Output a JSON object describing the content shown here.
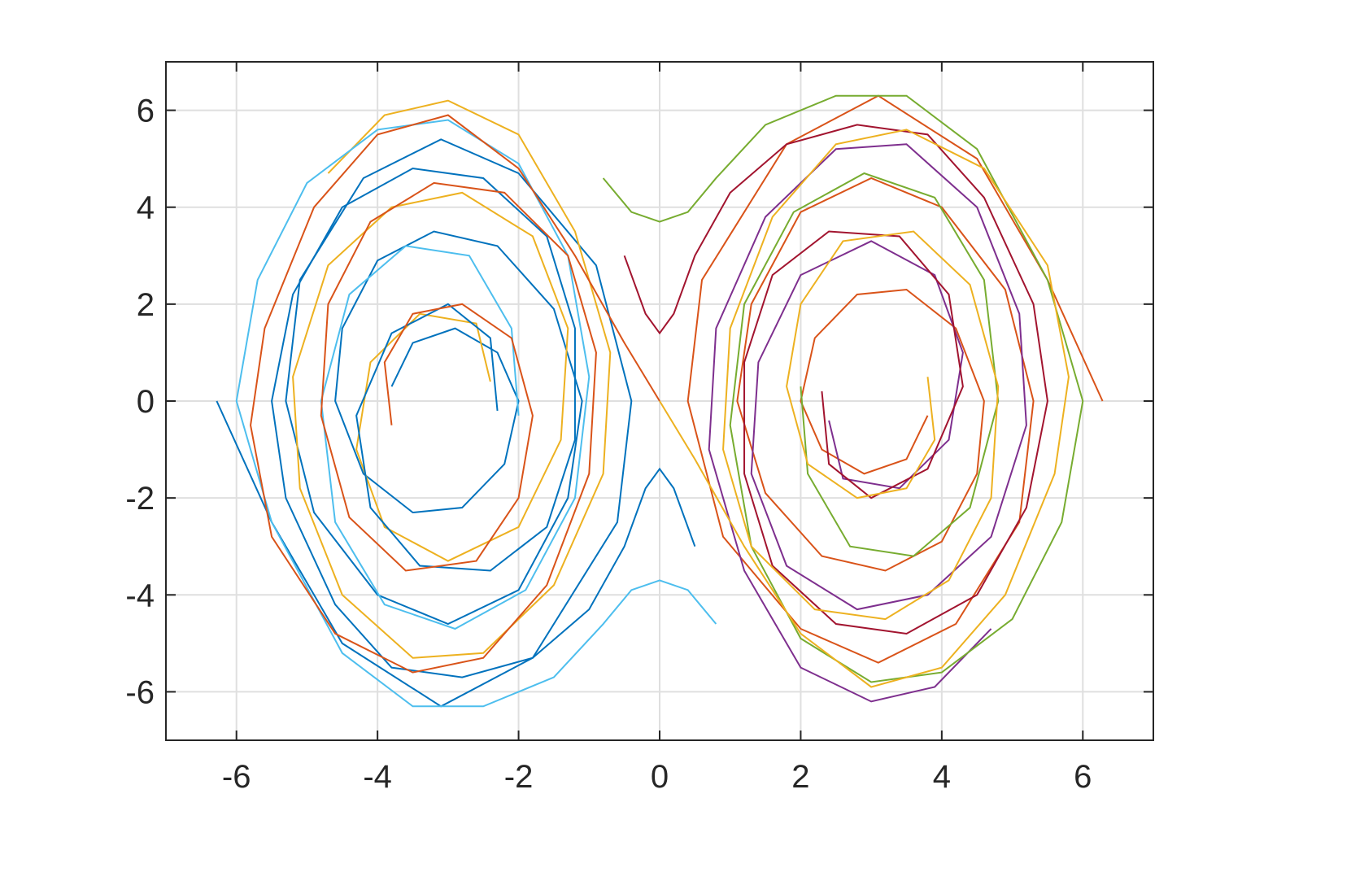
{
  "chart_data": {
    "type": "line",
    "xlim": [
      -7,
      7
    ],
    "ylim": [
      -7,
      7
    ],
    "xticks": [
      -6,
      -4,
      -2,
      0,
      2,
      4,
      6
    ],
    "yticks": [
      -6,
      -4,
      -2,
      0,
      2,
      4,
      6
    ],
    "grid": true,
    "series": [
      {
        "color": "#0072BD",
        "x": [
          -6.28,
          -5.5,
          -4.5,
          -3.1,
          -1.8,
          -0.6,
          -0.4,
          -0.9,
          -2.0,
          -3.1,
          -4.2,
          -5.1,
          -5.3,
          -4.9,
          -4.0,
          -3.0,
          -2.0,
          -1.3,
          -1.1,
          -1.5,
          -2.3,
          -3.2,
          -4.0,
          -4.5,
          -4.6,
          -4.2,
          -3.5,
          -2.8,
          -2.2,
          -2.0,
          -2.3,
          -2.9,
          -3.5,
          -3.8
        ],
        "values": [
          0,
          -2.5,
          -5.0,
          -6.3,
          -5.3,
          -2.5,
          0,
          2.8,
          4.7,
          5.4,
          4.6,
          2.5,
          0,
          -2.3,
          -4.0,
          -4.6,
          -3.9,
          -2.0,
          0,
          1.9,
          3.2,
          3.5,
          2.9,
          1.5,
          0,
          -1.5,
          -2.3,
          -2.2,
          -1.3,
          0,
          1.0,
          1.5,
          1.2,
          0.3
        ]
      },
      {
        "color": "#D95319",
        "x": [
          6.28,
          5.5,
          4.5,
          3.1,
          1.8,
          0.6,
          0.4,
          0.9,
          2.0,
          3.1,
          4.2,
          5.1,
          5.3,
          4.9,
          4.0,
          3.0,
          2.0,
          1.3,
          1.1,
          1.5,
          2.3,
          3.2,
          4.0,
          4.5,
          4.6,
          4.2,
          3.5,
          2.8,
          2.2,
          2.0,
          2.3,
          2.9,
          3.5,
          3.8
        ],
        "values": [
          0,
          2.5,
          5.0,
          6.3,
          5.3,
          2.5,
          0,
          -2.8,
          -4.7,
          -5.4,
          -4.6,
          -2.5,
          0,
          2.3,
          4.0,
          4.6,
          3.9,
          2.0,
          0,
          -1.9,
          -3.2,
          -3.5,
          -2.9,
          -1.5,
          0,
          1.5,
          2.3,
          2.2,
          1.3,
          0,
          -1.0,
          -1.5,
          -1.2,
          -0.3
        ]
      },
      {
        "color": "#EDB120",
        "x": [
          -4.7,
          -3.9,
          -3.0,
          -2.0,
          -1.2,
          -0.7,
          -0.8,
          -1.5,
          -2.5,
          -3.5,
          -4.5,
          -5.1,
          -5.2,
          -4.7,
          -3.8,
          -2.8,
          -1.8,
          -1.3,
          -1.4,
          -2.0,
          -3.0,
          -3.9,
          -4.3,
          -4.1,
          -3.4,
          -2.6,
          -2.4
        ],
        "values": [
          4.7,
          5.9,
          6.2,
          5.5,
          3.5,
          1.0,
          -1.5,
          -3.8,
          -5.2,
          -5.3,
          -4.0,
          -1.8,
          0.5,
          2.8,
          4.0,
          4.3,
          3.4,
          1.5,
          -0.8,
          -2.6,
          -3.3,
          -2.6,
          -1.0,
          0.8,
          1.8,
          1.6,
          0.4
        ]
      },
      {
        "color": "#7E2F8E",
        "x": [
          4.7,
          3.9,
          3.0,
          2.0,
          1.2,
          0.7,
          0.8,
          1.5,
          2.5,
          3.5,
          4.5,
          5.1,
          5.2,
          4.7,
          3.8,
          2.8,
          1.8,
          1.3,
          1.4,
          2.0,
          3.0,
          3.9,
          4.3,
          4.1,
          3.4,
          2.6,
          2.4
        ],
        "values": [
          -4.7,
          -5.9,
          -6.2,
          -5.5,
          -3.5,
          -1.0,
          1.5,
          3.8,
          5.2,
          5.3,
          4.0,
          1.8,
          -0.5,
          -2.8,
          -4.0,
          -4.3,
          -3.4,
          -1.5,
          0.8,
          2.6,
          3.3,
          2.6,
          1.0,
          -0.8,
          -1.8,
          -1.6,
          -0.4
        ]
      },
      {
        "color": "#77AC30",
        "x": [
          -0.8,
          -0.4,
          0,
          0.4,
          0.8,
          1.5,
          2.5,
          3.5,
          4.5,
          5.5,
          6.0,
          5.7,
          5.0,
          4.0,
          3.0,
          2.0,
          1.3,
          1.0,
          1.2,
          1.9,
          2.9,
          3.9,
          4.6,
          4.8,
          4.4,
          3.6,
          2.7,
          2.1,
          2.0
        ],
        "values": [
          4.6,
          3.9,
          3.7,
          3.9,
          4.6,
          5.7,
          6.3,
          6.3,
          5.2,
          2.5,
          0,
          -2.5,
          -4.5,
          -5.6,
          -5.8,
          -4.9,
          -3.0,
          -0.5,
          2.0,
          3.9,
          4.7,
          4.2,
          2.5,
          0,
          -2.2,
          -3.2,
          -3.0,
          -1.5,
          0.3
        ]
      },
      {
        "color": "#4DBEEE",
        "x": [
          0.8,
          0.4,
          0,
          -0.4,
          -0.8,
          -1.5,
          -2.5,
          -3.5,
          -4.5,
          -5.5,
          -6.0,
          -5.7,
          -5.0,
          -4.0,
          -3.0,
          -2.0,
          -1.3,
          -1.0,
          -1.2,
          -1.9,
          -2.9,
          -3.9,
          -4.6,
          -4.8,
          -4.4,
          -3.6,
          -2.7,
          -2.1,
          -2.0
        ],
        "values": [
          -4.6,
          -3.9,
          -3.7,
          -3.9,
          -4.6,
          -5.7,
          -6.3,
          -6.3,
          -5.2,
          -2.5,
          0,
          2.5,
          4.5,
          5.6,
          5.8,
          4.9,
          3.0,
          0.5,
          -2.0,
          -3.9,
          -4.7,
          -4.2,
          -2.5,
          0,
          2.2,
          3.2,
          3.0,
          1.5,
          -0.3
        ]
      },
      {
        "color": "#A2142F",
        "x": [
          -0.5,
          -0.2,
          0,
          0.2,
          0.5,
          1.0,
          1.8,
          2.8,
          3.8,
          4.6,
          5.3,
          5.5,
          5.2,
          4.5,
          3.5,
          2.5,
          1.6,
          1.2,
          1.2,
          1.6,
          2.4,
          3.4,
          4.1,
          4.3,
          3.8,
          3.0,
          2.4,
          2.3
        ],
        "values": [
          3.0,
          1.8,
          1.4,
          1.8,
          3.0,
          4.3,
          5.3,
          5.7,
          5.5,
          4.2,
          2.0,
          0,
          -2.2,
          -4.0,
          -4.8,
          -4.6,
          -3.4,
          -1.5,
          0.8,
          2.6,
          3.5,
          3.4,
          2.2,
          0.3,
          -1.4,
          -2.0,
          -1.3,
          0.2
        ]
      },
      {
        "color": "#0072BD",
        "x": [
          0.5,
          0.2,
          0,
          -0.2,
          -0.5,
          -1.0,
          -1.8,
          -2.8,
          -3.8,
          -4.6,
          -5.3,
          -5.5,
          -5.2,
          -4.5,
          -3.5,
          -2.5,
          -1.6,
          -1.2,
          -1.2,
          -1.6,
          -2.4,
          -3.4,
          -4.1,
          -4.3,
          -3.8,
          -3.0,
          -2.4,
          -2.3
        ],
        "values": [
          -3.0,
          -1.8,
          -1.4,
          -1.8,
          -3.0,
          -4.3,
          -5.3,
          -5.7,
          -5.5,
          -4.2,
          -2.0,
          0,
          2.2,
          4.0,
          4.8,
          4.6,
          3.4,
          1.5,
          -0.8,
          -2.6,
          -3.5,
          -3.4,
          -2.2,
          -0.3,
          1.4,
          2.0,
          1.3,
          -0.2
        ]
      },
      {
        "color": "#D95319",
        "x": [
          0,
          -0.5,
          -1.2,
          -2.0,
          -3.0,
          -4.0,
          -4.9,
          -5.6,
          -5.8,
          -5.5,
          -4.6,
          -3.5,
          -2.5,
          -1.6,
          -1.0,
          -0.9,
          -1.3,
          -2.2,
          -3.2,
          -4.1,
          -4.7,
          -4.8,
          -4.4,
          -3.6,
          -2.6,
          -2.0,
          -1.8,
          -2.1,
          -2.8,
          -3.5,
          -3.9,
          -3.8
        ],
        "values": [
          0,
          1.2,
          3.0,
          4.8,
          5.9,
          5.5,
          4.0,
          1.5,
          -0.5,
          -2.8,
          -4.8,
          -5.6,
          -5.3,
          -3.8,
          -1.5,
          1.0,
          3.0,
          4.3,
          4.5,
          3.7,
          2.0,
          -0.3,
          -2.4,
          -3.5,
          -3.3,
          -2.0,
          -0.3,
          1.3,
          2.0,
          1.8,
          0.8,
          -0.5
        ]
      },
      {
        "color": "#EDB120",
        "x": [
          0,
          0.5,
          1.2,
          2.0,
          3.0,
          4.0,
          4.9,
          5.6,
          5.8,
          5.5,
          4.6,
          3.5,
          2.5,
          1.6,
          1.0,
          0.9,
          1.3,
          2.2,
          3.2,
          4.1,
          4.7,
          4.8,
          4.4,
          3.6,
          2.6,
          2.0,
          1.8,
          2.1,
          2.8,
          3.5,
          3.9,
          3.8
        ],
        "values": [
          0,
          -1.2,
          -3.0,
          -4.8,
          -5.9,
          -5.5,
          -4.0,
          -1.5,
          0.5,
          2.8,
          4.8,
          5.6,
          5.3,
          3.8,
          1.5,
          -1.0,
          -3.0,
          -4.3,
          -4.5,
          -3.7,
          -2.0,
          0.3,
          2.4,
          3.5,
          3.3,
          2.0,
          0.3,
          -1.3,
          -2.0,
          -1.8,
          -0.8,
          0.5
        ]
      }
    ]
  }
}
